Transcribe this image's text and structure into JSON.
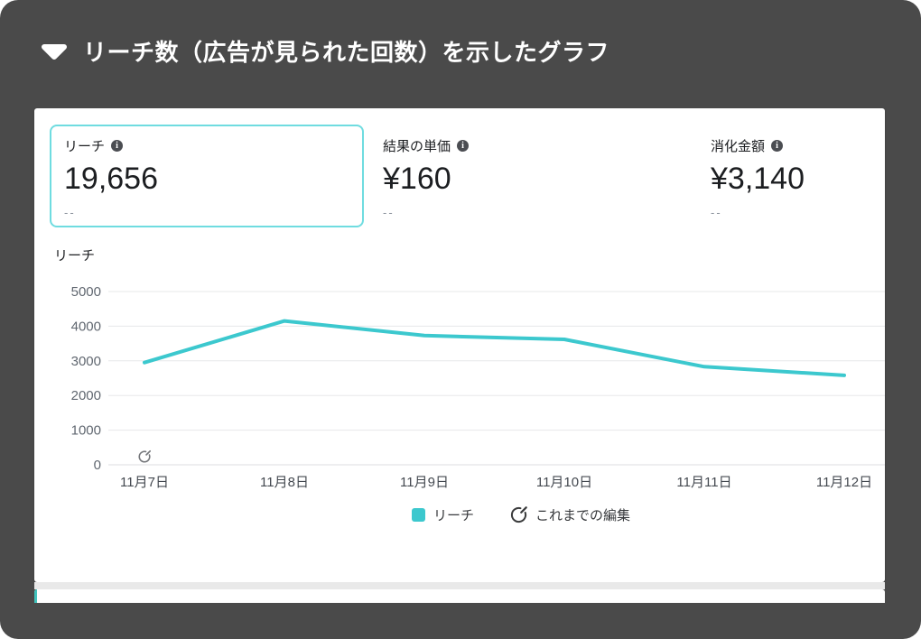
{
  "header": {
    "title": "リーチ数（広告が見られた回数）を示したグラフ"
  },
  "metrics": {
    "cards": [
      {
        "label": "リーチ",
        "value": "19,656",
        "sub": "--",
        "selected": true
      },
      {
        "label": "結果の単価",
        "value": "¥160",
        "sub": "--",
        "selected": false
      },
      {
        "label": "消化金額",
        "value": "¥3,140",
        "sub": "--",
        "selected": false
      }
    ]
  },
  "icons": {
    "info_glyph": "i"
  },
  "chart_data": {
    "type": "line",
    "axis_title": "リーチ",
    "x": [
      "11月7日",
      "11月8日",
      "11月9日",
      "11月10日",
      "11月11日",
      "11月12日"
    ],
    "series": [
      {
        "name": "リーチ",
        "color": "#3cc8ce",
        "values": [
          2950,
          4150,
          3730,
          3620,
          2830,
          2580
        ]
      }
    ],
    "ylim": [
      0,
      5000
    ],
    "yticks": [
      0,
      1000,
      2000,
      3000,
      4000,
      5000
    ],
    "grid": "horizontal",
    "legend_position": "bottom",
    "legend": [
      {
        "label": "リーチ",
        "marker": "square"
      },
      {
        "label": "これまでの編集",
        "marker": "edit-history-icon"
      }
    ],
    "edit_marker": {
      "x_label": "11月7日",
      "y_value": 0
    }
  },
  "colors": {
    "background": "#4a4a4a",
    "accent_teal": "#3cc8ce",
    "selected_card_border": "#6fdce0",
    "gridline": "#e7e8ea",
    "zero_line": "#dcdee1",
    "y_tick_text": "#606770",
    "x_tick_text": "#444950",
    "bottom_accent": "#41c3bd"
  }
}
